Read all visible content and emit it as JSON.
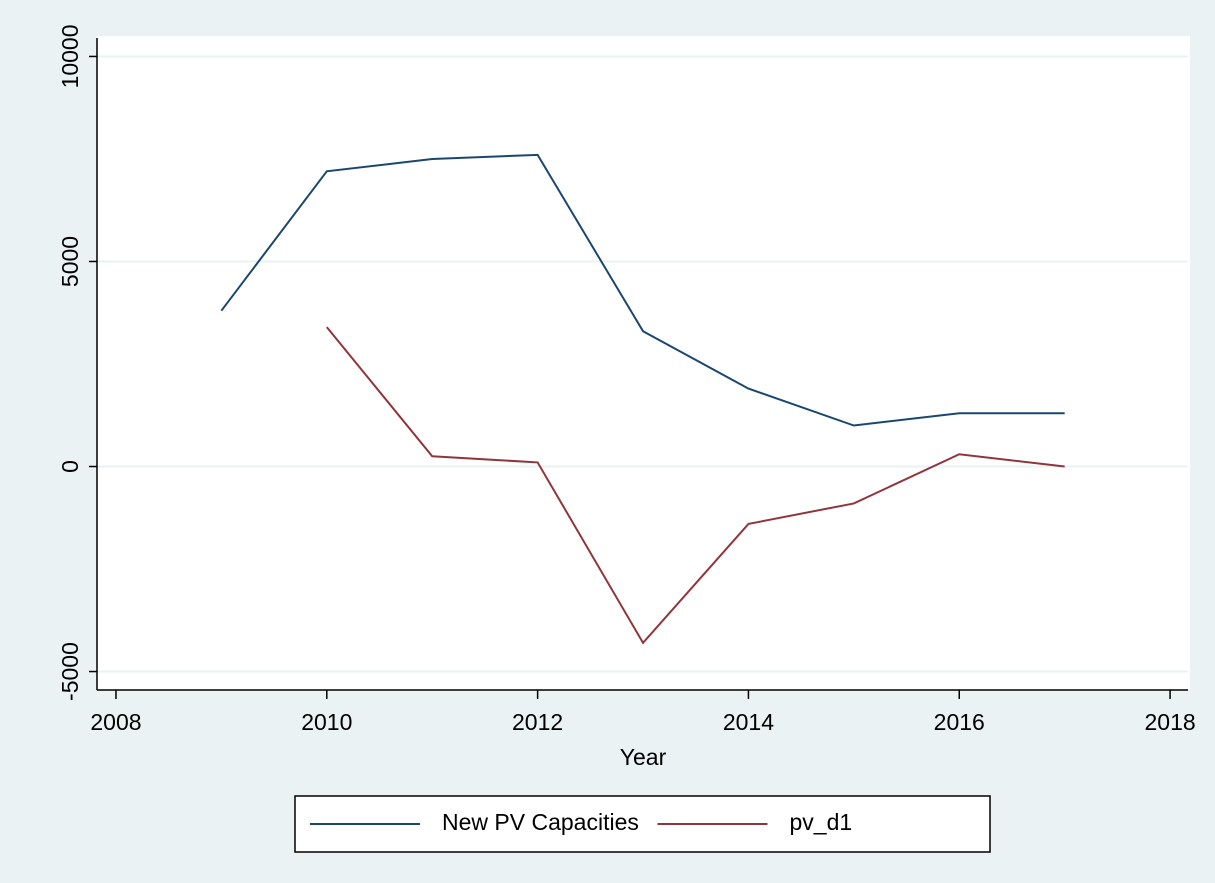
{
  "chart_data": {
    "type": "line",
    "x": [
      2009,
      2010,
      2011,
      2012,
      2013,
      2014,
      2015,
      2016,
      2017
    ],
    "series": [
      {
        "name": "New PV Capacities",
        "color": "#1a476f",
        "values": [
          3800,
          7200,
          7500,
          7600,
          3300,
          1900,
          1000,
          1300,
          1300
        ]
      },
      {
        "name": "pv_d1",
        "color": "#90353b",
        "values": [
          null,
          3400,
          250,
          100,
          -4300,
          -1400,
          -900,
          300,
          0
        ]
      }
    ],
    "xlabel": "Year",
    "xlim": [
      2007.82,
      2018.17
    ],
    "xticks": [
      2008,
      2010,
      2012,
      2014,
      2016,
      2018
    ],
    "ylim": [
      -5450,
      10450
    ],
    "yticks": [
      -5000,
      0,
      5000,
      10000
    ],
    "grid": true,
    "legend": "bottom"
  }
}
